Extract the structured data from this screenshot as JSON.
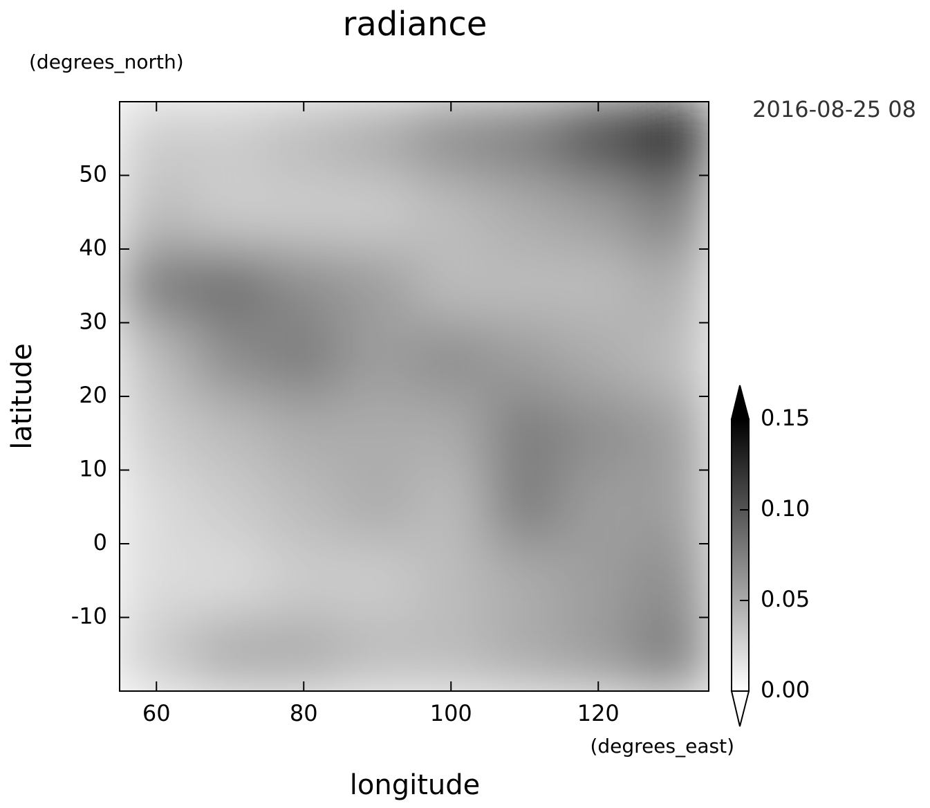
{
  "chart_data": {
    "type": "heatmap",
    "title": "radiance",
    "xlabel": "longitude",
    "ylabel": "latitude",
    "x_unit": "(degrees_east)",
    "y_unit": "(degrees_north)",
    "time_label": "2016-08-25 08",
    "xlim": [
      55,
      135
    ],
    "ylim": [
      -20,
      60
    ],
    "xticks": [
      60,
      80,
      100,
      120
    ],
    "yticks": [
      -10,
      0,
      10,
      20,
      30,
      40,
      50
    ],
    "x": [
      60,
      70,
      80,
      90,
      100,
      110,
      120,
      130
    ],
    "y": [
      55,
      45,
      35,
      25,
      15,
      5,
      -5,
      -15
    ],
    "z": [
      [
        0.02,
        0.02,
        0.03,
        0.04,
        0.06,
        0.07,
        0.1,
        0.13
      ],
      [
        0.03,
        0.02,
        0.02,
        0.02,
        0.03,
        0.04,
        0.05,
        0.07
      ],
      [
        0.07,
        0.08,
        0.06,
        0.05,
        0.03,
        0.03,
        0.03,
        0.04
      ],
      [
        0.03,
        0.06,
        0.07,
        0.05,
        0.06,
        0.05,
        0.04,
        0.03
      ],
      [
        0.02,
        0.03,
        0.04,
        0.04,
        0.04,
        0.07,
        0.06,
        0.05
      ],
      [
        0.01,
        0.02,
        0.03,
        0.04,
        0.03,
        0.07,
        0.05,
        0.05
      ],
      [
        0.01,
        0.01,
        0.02,
        0.02,
        0.03,
        0.04,
        0.05,
        0.06
      ],
      [
        0.02,
        0.04,
        0.04,
        0.03,
        0.03,
        0.04,
        0.05,
        0.07
      ]
    ],
    "clim": [
      0,
      0.15
    ],
    "cticks": [
      {
        "value": 0,
        "label": "0.00"
      },
      0.05,
      {
        "value": 0.1,
        "label": "0.10"
      },
      0.15
    ]
  }
}
